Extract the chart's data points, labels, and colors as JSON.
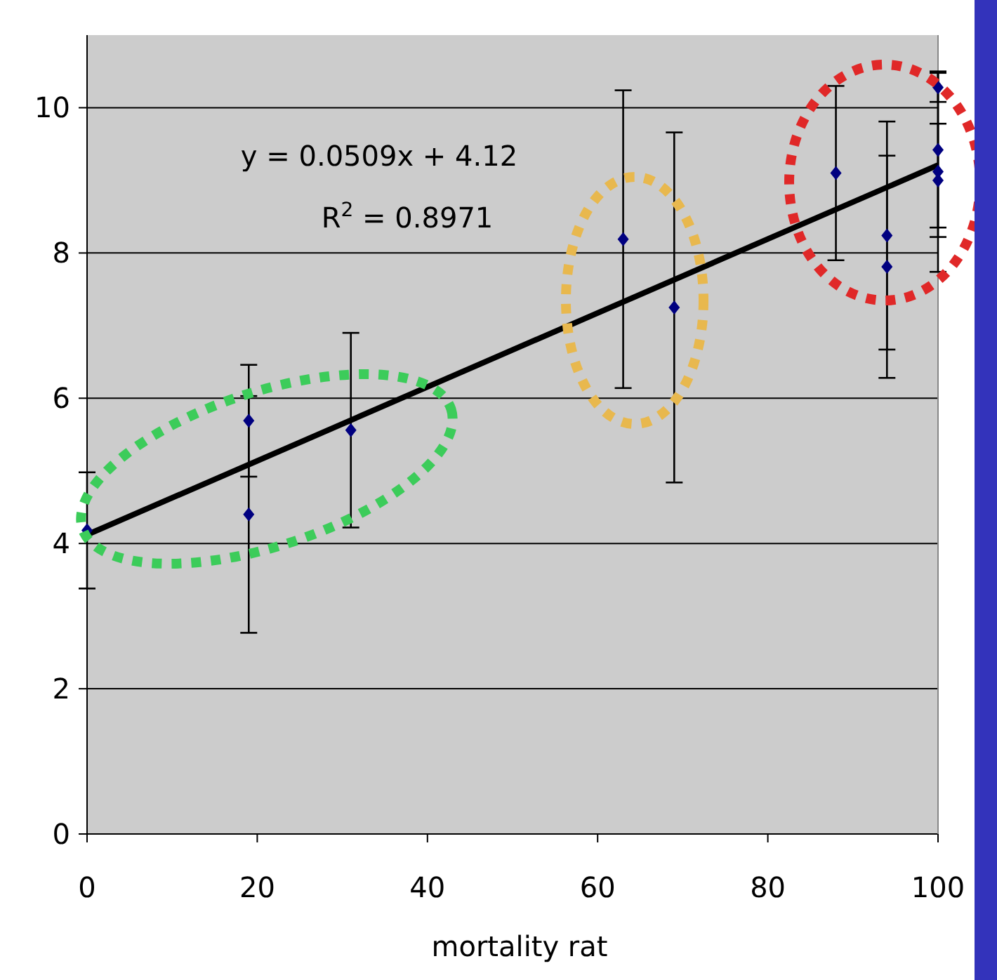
{
  "chart_data": {
    "type": "scatter",
    "xlabel": "mortality rat",
    "xlim": [
      0,
      100
    ],
    "xticks": [
      0,
      20,
      40,
      60,
      80,
      100
    ],
    "ylim": [
      0,
      11
    ],
    "yticks": [
      0,
      2,
      4,
      6,
      8,
      10
    ],
    "grid": "y",
    "annotations": [
      "y = 0.0509x + 4.12",
      "R$^{2}$ = 0.8971"
    ],
    "series": [
      {
        "marker": "diamond",
        "color": "#000080",
        "x": [
          0,
          19,
          19,
          31,
          63,
          69,
          88,
          94,
          94,
          100,
          100,
          100,
          100
        ],
        "values": [
          4.18,
          5.69,
          4.4,
          5.56,
          8.19,
          7.25,
          9.1,
          8.24,
          7.81,
          10.28,
          9.42,
          9.12,
          9.0
        ],
        "errors": [
          0.8,
          0.77,
          1.63,
          1.34,
          2.05,
          2.41,
          1.2,
          1.57,
          1.53,
          0.2,
          1.07,
          1.38,
          0.78
        ]
      },
      {
        "type": "line",
        "color": "#000000",
        "x": [
          0,
          100
        ],
        "values": [
          4.12,
          9.21
        ],
        "line_style": "solid"
      }
    ]
  }
}
